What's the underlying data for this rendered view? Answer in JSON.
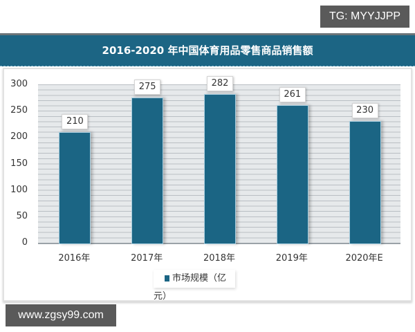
{
  "watermarks": {
    "top": "TG: MYYJJPP",
    "bottom": "www.zgsy99.com"
  },
  "header": {
    "title": "2016-2020 年中国体育用品零售商品销售额"
  },
  "colors": {
    "bar": "#1b6584",
    "header": "#1c6584"
  },
  "chart_data": {
    "type": "bar",
    "title": "2016-2020 年中国体育用品零售商品销售额",
    "categories": [
      "2016年",
      "2017年",
      "2018年",
      "2019年",
      "2020年E"
    ],
    "series": [
      {
        "name": "市场规模（亿元）",
        "values": [
          210,
          275,
          282,
          261,
          230
        ]
      }
    ],
    "values": [
      210,
      275,
      282,
      261,
      230
    ],
    "xlabel": "",
    "ylabel": "",
    "ylim": [
      0,
      300
    ],
    "yticks": [
      "0",
      "50",
      "100",
      "150",
      "200",
      "250",
      "300"
    ],
    "grid": true,
    "legend_position": "bottom"
  },
  "legend": {
    "label": "市场规模（亿元）"
  }
}
